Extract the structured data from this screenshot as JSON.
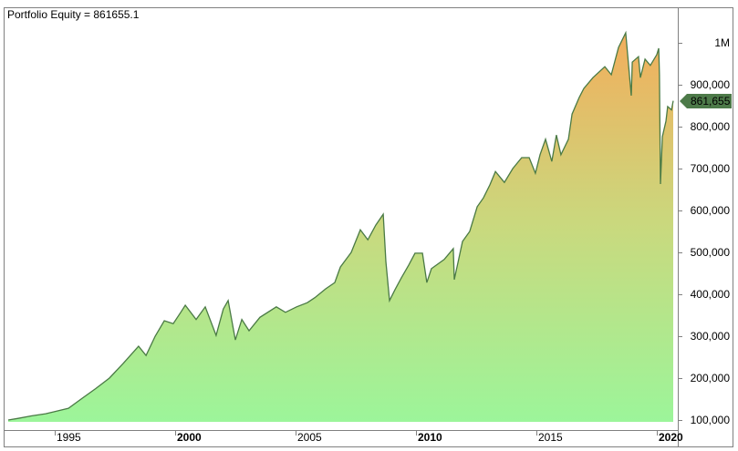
{
  "header": {
    "title": "Portfolio Equity = 861655.1"
  },
  "last_value_label": "861,655",
  "colors": {
    "line": "#4a7a45",
    "fill_top": "#f2ae5c",
    "fill_mid": "#c9d97e",
    "fill_bottom": "#9cf59a",
    "label_bg": "#4d7a49",
    "axis": "#808080"
  },
  "chart_data": {
    "type": "area",
    "title": "Portfolio Equity = 861655.1",
    "xlabel": "",
    "ylabel": "",
    "grid": false,
    "legend": "none",
    "xlim": [
      1993.0,
      2020.7
    ],
    "ylim": [
      95000,
      1050000
    ],
    "x_ticks": [
      {
        "label": "1995",
        "value": 1995,
        "bold": false
      },
      {
        "label": "2000",
        "value": 2000,
        "bold": true
      },
      {
        "label": "2005",
        "value": 2005,
        "bold": false
      },
      {
        "label": "2010",
        "value": 2010,
        "bold": true
      },
      {
        "label": "2015",
        "value": 2015,
        "bold": false
      },
      {
        "label": "2020",
        "value": 2020,
        "bold": true
      }
    ],
    "y_ticks": [
      {
        "label": "1M",
        "value": 1000000
      },
      {
        "label": "900,000",
        "value": 900000
      },
      {
        "label": "800,000",
        "value": 800000
      },
      {
        "label": "700,000",
        "value": 700000
      },
      {
        "label": "600,000",
        "value": 600000
      },
      {
        "label": "500,000",
        "value": 500000
      },
      {
        "label": "400,000",
        "value": 400000
      },
      {
        "label": "300,000",
        "value": 300000
      },
      {
        "label": "200,000",
        "value": 200000
      },
      {
        "label": "100,000",
        "value": 100000
      }
    ],
    "series": [
      {
        "name": "Portfolio Equity",
        "last_value": 861655.1,
        "x": [
          1993.07,
          1993.48,
          1994.05,
          1994.62,
          1995.0,
          1995.57,
          1996.14,
          1996.7,
          1997.27,
          1997.84,
          1998.48,
          1998.79,
          1999.17,
          1999.55,
          1999.92,
          2000.23,
          2000.42,
          2000.87,
          2001.25,
          2001.7,
          2002.0,
          2002.2,
          2002.5,
          2002.77,
          2003.07,
          2003.52,
          2004.2,
          2004.58,
          2005.04,
          2005.49,
          2005.8,
          2006.25,
          2006.63,
          2006.86,
          2007.31,
          2007.69,
          2008.0,
          2008.33,
          2008.64,
          2008.75,
          2008.9,
          2009.13,
          2009.39,
          2009.7,
          2009.96,
          2010.27,
          2010.45,
          2010.64,
          2011.17,
          2011.55,
          2011.59,
          2011.93,
          2012.23,
          2012.54,
          2012.8,
          2013.07,
          2013.3,
          2013.67,
          2014.02,
          2014.39,
          2014.7,
          2014.96,
          2015.15,
          2015.38,
          2015.64,
          2015.83,
          2016.02,
          2016.33,
          2016.48,
          2016.78,
          2016.97,
          2017.35,
          2017.84,
          2018.11,
          2018.41,
          2018.71,
          2018.94,
          2018.98,
          2019.24,
          2019.32,
          2019.51,
          2019.73,
          2020.0,
          2020.08,
          2020.11,
          2020.15,
          2020.23,
          2020.38,
          2020.45,
          2020.61,
          2020.68
        ],
        "values": [
          100000,
          104000,
          110000,
          115000,
          120000,
          128000,
          152000,
          175000,
          200000,
          235000,
          276000,
          254000,
          300000,
          337000,
          330000,
          357000,
          374000,
          340000,
          370000,
          302000,
          365000,
          385000,
          291000,
          340000,
          313000,
          345000,
          370000,
          357000,
          370000,
          380000,
          392000,
          413000,
          428000,
          465000,
          500000,
          554000,
          530000,
          565000,
          591000,
          478000,
          385000,
          411000,
          439000,
          470000,
          498000,
          498000,
          428000,
          461000,
          483000,
          509000,
          435000,
          526000,
          550000,
          609000,
          630000,
          661000,
          693000,
          667000,
          700000,
          726000,
          726000,
          689000,
          733000,
          770000,
          717000,
          780000,
          733000,
          770000,
          830000,
          870000,
          891000,
          917000,
          943000,
          924000,
          989000,
          1024000,
          874000,
          954000,
          967000,
          917000,
          961000,
          946000,
          972000,
          987000,
          924000,
          663000,
          776000,
          813000,
          848000,
          840000,
          861655
        ]
      }
    ]
  }
}
